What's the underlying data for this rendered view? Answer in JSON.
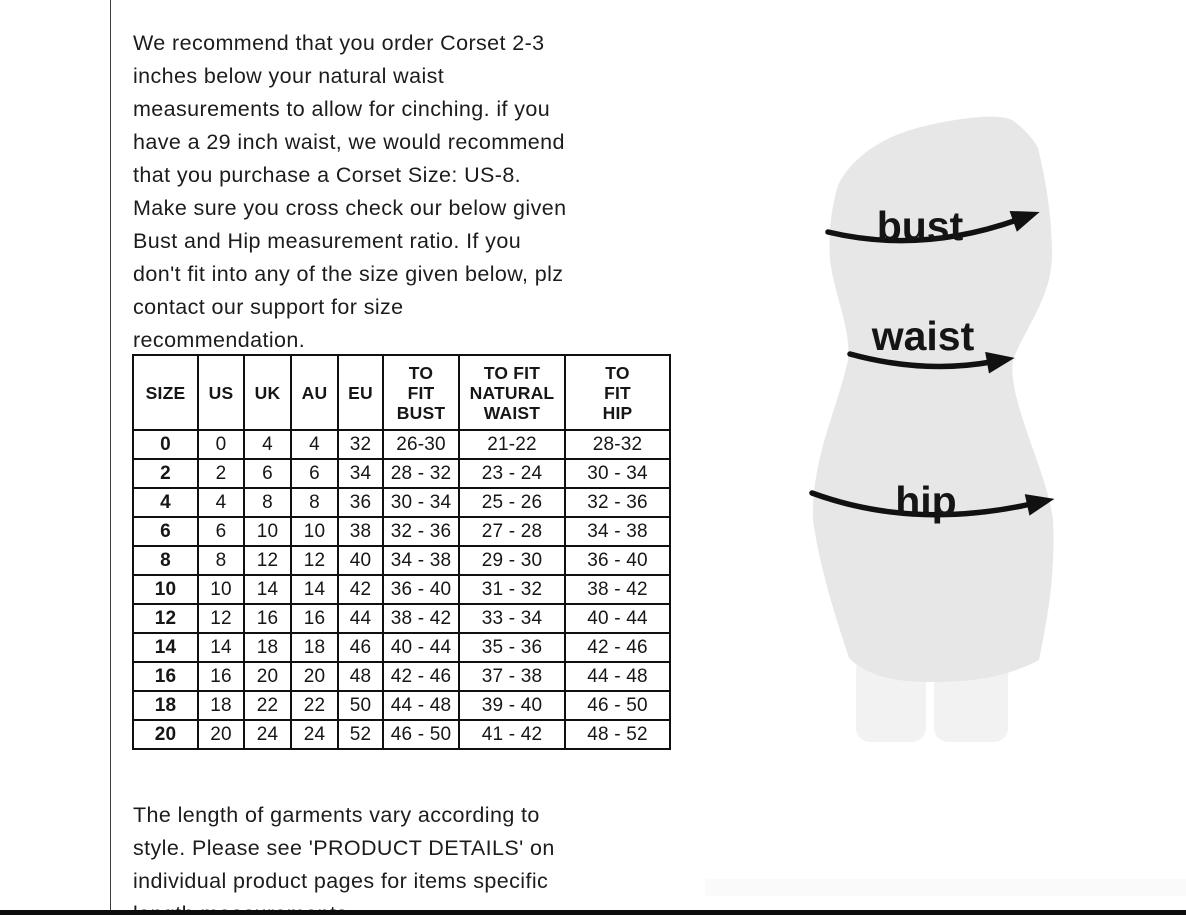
{
  "page": {
    "intro_text": "We recommend that you order Corset 2-3\ninches below your natural waist\nmeasurements to allow for cinching. if you\nhave a 29 inch waist, we would recommend\nthat you purchase a Corset Size: US-8.\nMake sure you cross check our below given\nBust and Hip measurement ratio. If you\ndon't fit into any of the size given below, plz\ncontact our support for size\nrecommendation.",
    "footer_text": "The length of garments vary according to\nstyle. Please see 'PRODUCT DETAILS'  on\nindividual product pages for items specific\nlength measurements."
  },
  "size_table": {
    "columns": [
      "SIZE",
      "US",
      "UK",
      "AU",
      "EU",
      "TO\nFIT\nBUST",
      "TO FIT\nNATURAL\nWAIST",
      "TO\nFIT\nHIP"
    ],
    "rows": [
      [
        "0",
        "0",
        "4",
        "4",
        "32",
        "26-30",
        "21-22",
        "28-32"
      ],
      [
        "2",
        "2",
        "6",
        "6",
        "34",
        "28 - 32",
        "23 - 24",
        "30 - 34"
      ],
      [
        "4",
        "4",
        "8",
        "8",
        "36",
        "30 - 34",
        "25 - 26",
        "32 - 36"
      ],
      [
        "6",
        "6",
        "10",
        "10",
        "38",
        "32 - 36",
        "27 - 28",
        "34 - 38"
      ],
      [
        "8",
        "8",
        "12",
        "12",
        "40",
        "34 - 38",
        "29 - 30",
        "36 - 40"
      ],
      [
        "10",
        "10",
        "14",
        "14",
        "42",
        "36 - 40",
        "31 - 32",
        "38 - 42"
      ],
      [
        "12",
        "12",
        "16",
        "16",
        "44",
        "38 - 42",
        "33 - 34",
        "40 - 44"
      ],
      [
        "14",
        "14",
        "18",
        "18",
        "46",
        "40 - 44",
        "35 - 36",
        "42 - 46"
      ],
      [
        "16",
        "16",
        "20",
        "20",
        "48",
        "42 - 46",
        "37 - 38",
        "44 - 48"
      ],
      [
        "18",
        "18",
        "22",
        "22",
        "50",
        "44 - 48",
        "39 - 40",
        "46 - 50"
      ],
      [
        "20",
        "20",
        "24",
        "24",
        "52",
        "46 - 50",
        "41 - 42",
        "48 - 52"
      ]
    ]
  },
  "figure": {
    "labels": {
      "bust": "bust",
      "waist": "waist",
      "hip": "hip"
    },
    "colors": {
      "body": "#e7e7e7",
      "body_highlight": "#f1f1f1",
      "legs": "#f2f2f2",
      "arrow": "#111111",
      "text": "#1c1c1c",
      "border": "#101010"
    }
  }
}
